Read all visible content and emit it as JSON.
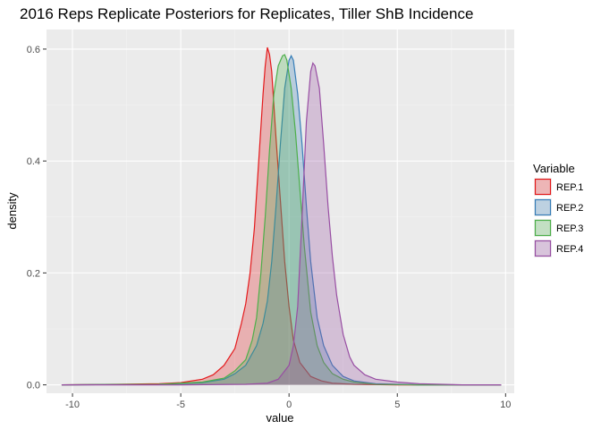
{
  "chart_data": {
    "type": "area",
    "title": "2016 Reps Replicate Posteriors for Replicates, Tiller ShB Incidence",
    "xlabel": "value",
    "ylabel": "density",
    "xlim": [
      -11.2,
      10.4
    ],
    "ylim": [
      -0.015,
      0.635
    ],
    "x_ticks": [
      -10,
      -5,
      0,
      5,
      10
    ],
    "y_ticks": [
      0.0,
      0.2,
      0.4,
      0.6
    ],
    "x_tick_labels": [
      "-10",
      "-5",
      "0",
      "5",
      "10"
    ],
    "y_tick_labels": [
      "0.0",
      "0.2",
      "0.4",
      "0.6"
    ],
    "grid": true,
    "legend": {
      "title": "Variable",
      "position": "right"
    },
    "series": [
      {
        "name": "REP.1",
        "color": "#E41A1C",
        "x": [
          -10.5,
          -8,
          -6,
          -5,
          -4,
          -3.5,
          -3,
          -2.5,
          -2.2,
          -2,
          -1.8,
          -1.6,
          -1.4,
          -1.2,
          -1.1,
          -1,
          -0.9,
          -0.8,
          -0.6,
          -0.4,
          -0.2,
          0,
          0.2,
          0.5,
          1,
          1.5,
          2,
          3,
          5,
          9.8
        ],
        "y": [
          0.0,
          0.001,
          0.002,
          0.004,
          0.01,
          0.018,
          0.035,
          0.065,
          0.11,
          0.145,
          0.2,
          0.28,
          0.4,
          0.52,
          0.57,
          0.603,
          0.59,
          0.56,
          0.44,
          0.33,
          0.22,
          0.14,
          0.08,
          0.04,
          0.015,
          0.007,
          0.003,
          0.001,
          0.0,
          0.0
        ]
      },
      {
        "name": "REP.2",
        "color": "#377EB8",
        "x": [
          -10.5,
          -6,
          -4,
          -3,
          -2.5,
          -2,
          -1.5,
          -1.2,
          -1,
          -0.8,
          -0.6,
          -0.4,
          -0.2,
          0,
          0.1,
          0.2,
          0.4,
          0.6,
          0.8,
          1,
          1.3,
          1.6,
          2,
          2.5,
          3,
          4,
          6,
          9.8
        ],
        "y": [
          0.0,
          0.001,
          0.004,
          0.01,
          0.02,
          0.035,
          0.07,
          0.11,
          0.15,
          0.22,
          0.32,
          0.43,
          0.53,
          0.58,
          0.588,
          0.58,
          0.52,
          0.43,
          0.32,
          0.22,
          0.12,
          0.07,
          0.035,
          0.015,
          0.007,
          0.002,
          0.0,
          0.0
        ]
      },
      {
        "name": "REP.3",
        "color": "#4DAF4A",
        "x": [
          -10.5,
          -6,
          -4,
          -3,
          -2.5,
          -2,
          -1.7,
          -1.5,
          -1.3,
          -1.1,
          -0.9,
          -0.7,
          -0.5,
          -0.3,
          -0.2,
          -0.1,
          0.1,
          0.3,
          0.5,
          0.7,
          1,
          1.3,
          1.6,
          2,
          2.5,
          3,
          4,
          6,
          9.8
        ],
        "y": [
          0.0,
          0.001,
          0.005,
          0.012,
          0.025,
          0.045,
          0.08,
          0.12,
          0.2,
          0.3,
          0.42,
          0.52,
          0.57,
          0.588,
          0.59,
          0.58,
          0.53,
          0.45,
          0.35,
          0.25,
          0.13,
          0.07,
          0.04,
          0.02,
          0.01,
          0.005,
          0.001,
          0.0,
          0.0
        ]
      },
      {
        "name": "REP.4",
        "color": "#984EA3",
        "x": [
          -10.5,
          -5,
          -2,
          -1,
          -0.5,
          0,
          0.2,
          0.4,
          0.6,
          0.8,
          1,
          1.1,
          1.2,
          1.4,
          1.6,
          1.8,
          2,
          2.2,
          2.5,
          2.8,
          3,
          3.5,
          4,
          5,
          6,
          8,
          9.8
        ],
        "y": [
          0.0,
          0.0,
          0.001,
          0.003,
          0.01,
          0.035,
          0.07,
          0.14,
          0.3,
          0.47,
          0.56,
          0.575,
          0.57,
          0.53,
          0.43,
          0.32,
          0.23,
          0.16,
          0.09,
          0.05,
          0.035,
          0.018,
          0.01,
          0.005,
          0.002,
          0.0,
          0.0
        ]
      }
    ]
  }
}
